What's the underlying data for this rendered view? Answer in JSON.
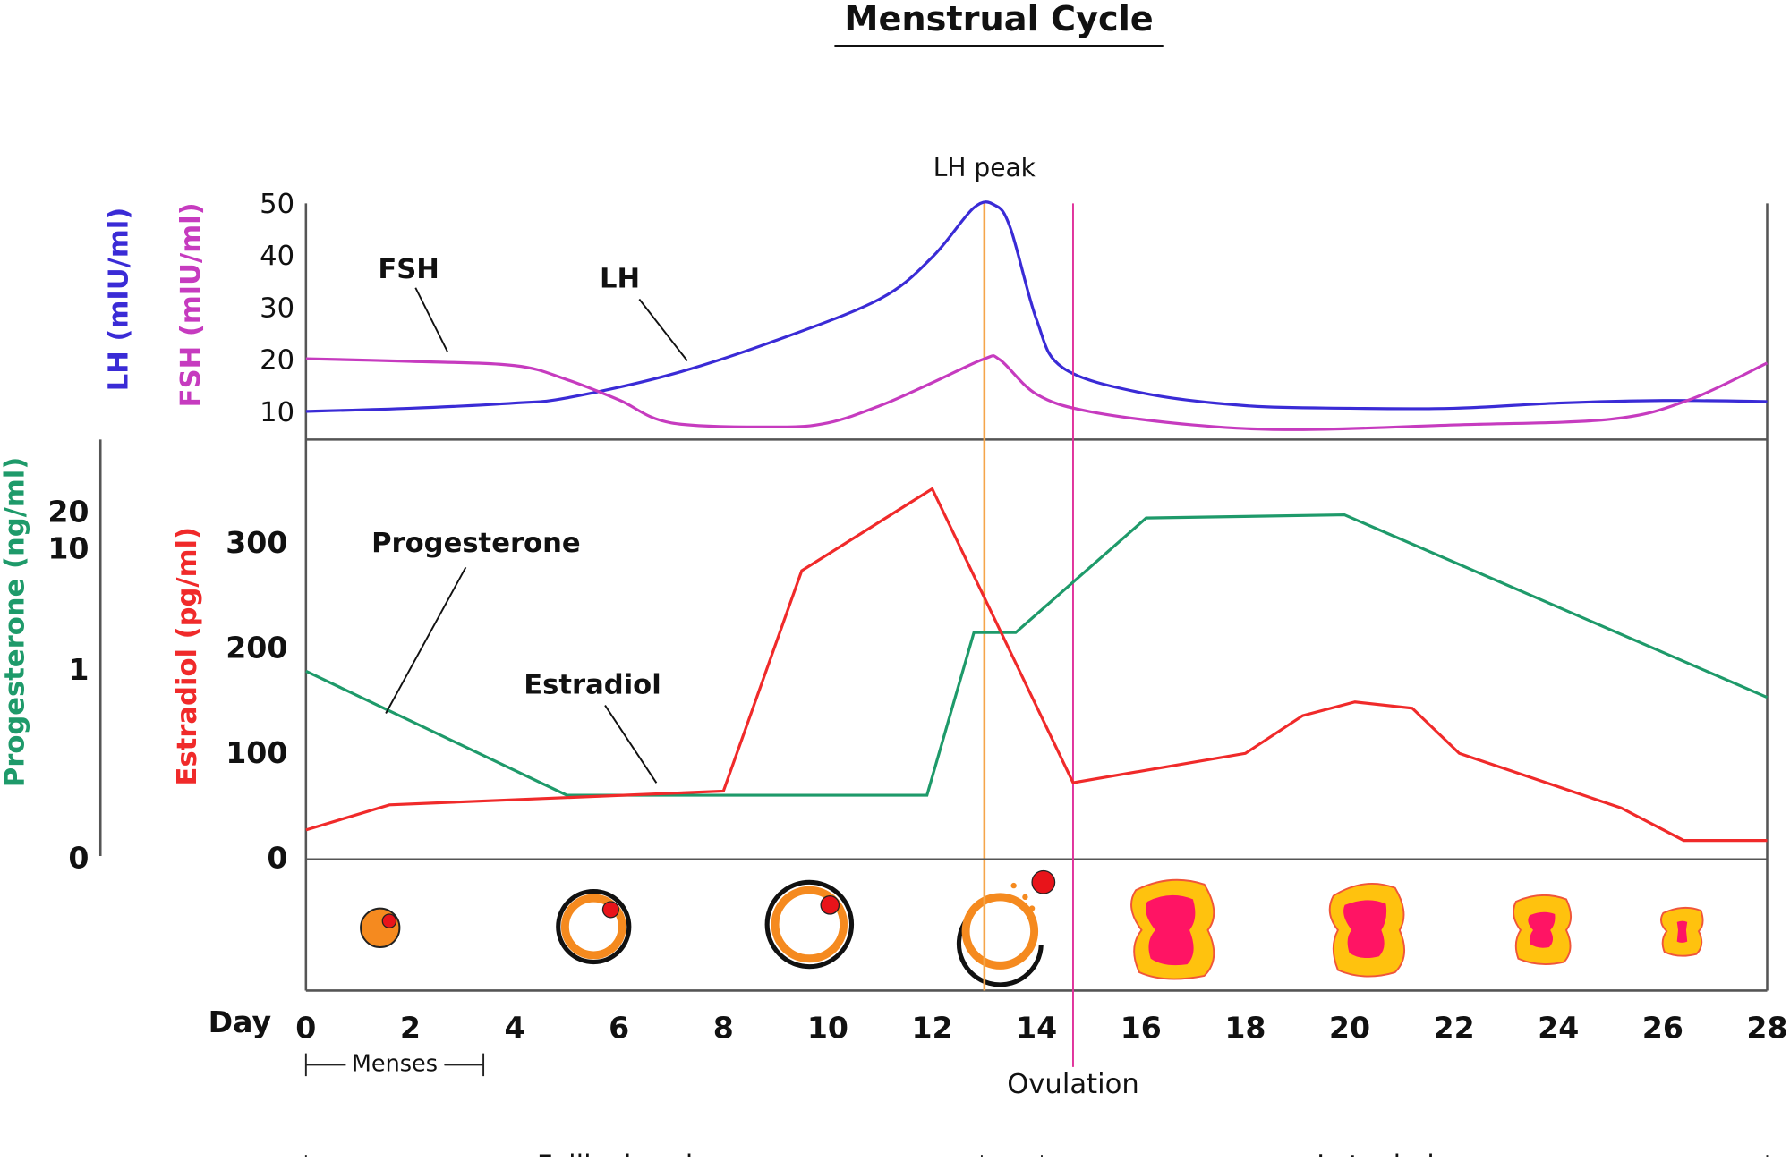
{
  "chart_data": [
    {
      "type": "line",
      "title": "Menstrual Cycle",
      "smooth": true,
      "ylabel": "LH (mIU/ml)",
      "y2label": "FSH (mIU/ml)",
      "xlim": [
        0,
        28
      ],
      "ylim": [
        5,
        51
      ],
      "yticks": [
        10,
        20,
        30,
        40,
        50
      ],
      "annotations": [
        {
          "text": "LH peak",
          "x": 13
        }
      ],
      "series": [
        {
          "name": "LH",
          "color": "#3a2bd6",
          "x": [
            0,
            2,
            4,
            5,
            7,
            9,
            11,
            12,
            12.8,
            13.2,
            13.5,
            14,
            14.5,
            16,
            18,
            20,
            22,
            24,
            26,
            28
          ],
          "values": [
            10.4,
            11,
            12,
            13,
            17.5,
            24,
            32,
            40,
            49.5,
            50,
            45.6,
            28,
            18.8,
            14,
            11.5,
            11,
            11,
            12,
            12.5,
            12.3
          ]
        },
        {
          "name": "FSH",
          "color": "#c63bbf",
          "x": [
            0,
            2,
            4,
            5,
            6,
            7,
            9,
            10,
            11,
            12,
            13,
            13.3,
            14,
            15,
            17,
            19,
            22,
            25,
            26.5,
            28
          ],
          "values": [
            20.5,
            20,
            19.2,
            16.5,
            12.6,
            8.2,
            7.4,
            8.2,
            11.5,
            15.9,
            20.5,
            20.3,
            13.7,
            10.4,
            7.8,
            6.9,
            7.8,
            8.9,
            12.6,
            19.7
          ]
        }
      ]
    },
    {
      "type": "line",
      "xlabel": "Day",
      "ylabel": "Estradiol (pg/ml)",
      "y2label": "Progesterone (ng/ml)",
      "y2scale": "symlog",
      "xlim": [
        0,
        28
      ],
      "xticks": [
        0,
        2,
        4,
        6,
        8,
        10,
        12,
        14,
        16,
        18,
        20,
        22,
        24,
        26,
        28
      ],
      "ylim": [
        0,
        400
      ],
      "yticks": [
        0,
        100,
        200,
        300
      ],
      "y2lim": [
        0,
        80
      ],
      "y2ticks": [
        0,
        1,
        10,
        20
      ],
      "annotations": [
        {
          "text": "Ovulation",
          "x": 14.7
        }
      ],
      "phases": [
        {
          "label": "Menses",
          "start": 0,
          "end": 3.4
        },
        {
          "label": "Follicular phase",
          "start": 0,
          "end": 12.95
        },
        {
          "label": "Luteal phase",
          "start": 14.1,
          "end": 28
        }
      ],
      "series": [
        {
          "name": "Progesterone",
          "color": "#1e9a6a",
          "axis": "y2",
          "x": [
            0,
            5,
            11.9,
            12.8,
            13.6,
            16.1,
            19.9,
            28
          ],
          "values": [
            1,
            0.07,
            0.07,
            2.1,
            2.1,
            18.3,
            19.4,
            0.6
          ]
        },
        {
          "name": "Estradiol",
          "color": "#f02a2a",
          "x": [
            0,
            1.6,
            8,
            9.5,
            12,
            14.7,
            18,
            19.1,
            20.1,
            21.2,
            22.1,
            25.2,
            26.4,
            28
          ],
          "values": [
            28,
            52,
            65,
            275,
            353,
            73,
            101,
            137,
            150,
            144,
            101,
            49,
            18,
            18
          ]
        }
      ]
    }
  ]
}
